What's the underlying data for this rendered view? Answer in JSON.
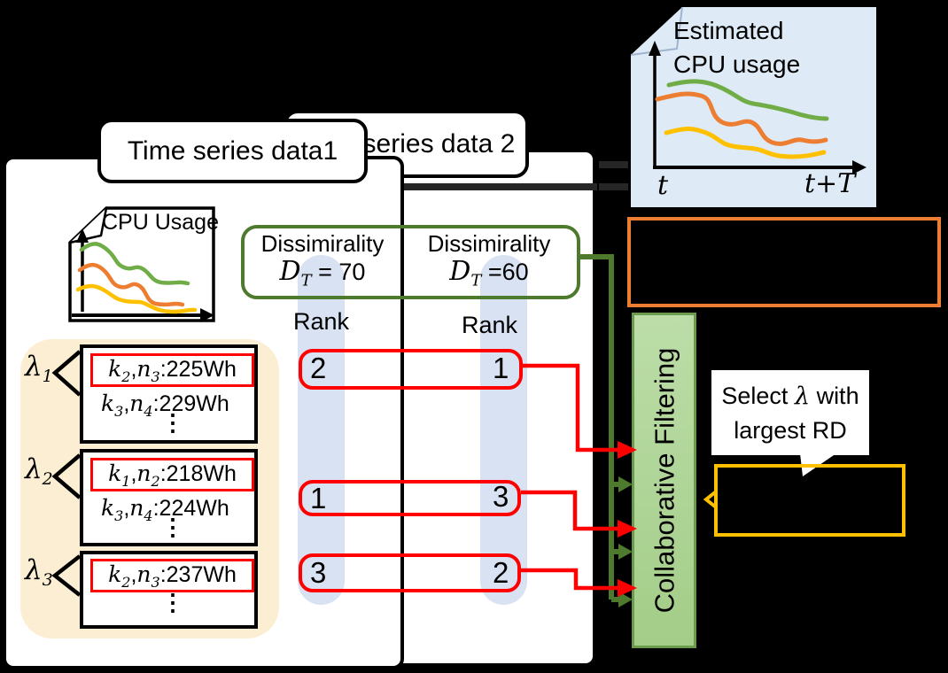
{
  "colors": {
    "green": "#70AD47",
    "orange": "#ED7D31",
    "yellow": "#FFC000",
    "red": "#FF0000",
    "dkgreen": "#4E7A2E",
    "cfFill": "#A3CD88",
    "cfFillLight": "#BCDDA8",
    "cfBorder": "#6B9C4E",
    "band": "#D9E2F3",
    "cream": "#FBEED3",
    "lightblue": "#DEEAF6",
    "connector": "#262626"
  },
  "cards": {
    "card1_title": "Time series data1",
    "card2_title": "Time series data 2"
  },
  "cpu_chart": {
    "label": "CPU Usage"
  },
  "estimated_chart": {
    "title_line1": "Estimated",
    "title_line2": "CPU usage",
    "x_start": "t",
    "x_end": "t+T"
  },
  "dissimilarity": {
    "col1": {
      "label": "Dissimirality",
      "var": "D",
      "sub": "T",
      "value": "= 70"
    },
    "col2": {
      "label": "Dissimirality",
      "var": "D",
      "sub": "T",
      "value": "=60"
    }
  },
  "rank": {
    "label1": "Rank",
    "label2": "Rank",
    "rows": [
      {
        "left": "2",
        "right": "1"
      },
      {
        "left": "1",
        "right": "3"
      },
      {
        "left": "3",
        "right": "2"
      }
    ]
  },
  "lambdas": [
    {
      "symbol": "λ",
      "sub": "1",
      "rows": [
        {
          "a": "k",
          "as": "2",
          "sep": ",",
          "b": "n",
          "bs": "3",
          "v": ":225Wh"
        },
        {
          "a": "k",
          "as": "3",
          "sep": ",",
          "b": "n",
          "bs": "4",
          "v": ":229Wh"
        }
      ],
      "dots": "⋮"
    },
    {
      "symbol": "λ",
      "sub": "2",
      "rows": [
        {
          "a": "k",
          "as": "1",
          "sep": ",",
          "b": "n",
          "bs": "2",
          "v": ":218Wh"
        },
        {
          "a": "k",
          "as": "3",
          "sep": ",",
          "b": "n",
          "bs": "4",
          "v": ":224Wh"
        }
      ],
      "dots": "⋮"
    },
    {
      "symbol": "λ",
      "sub": "3",
      "rows": [
        {
          "a": "k",
          "as": "2",
          "sep": ",",
          "b": "n",
          "bs": "3",
          "v": ":237Wh"
        }
      ],
      "dots": "⋮"
    }
  ],
  "cf": {
    "label": "Collaborative Filtering"
  },
  "callout": {
    "pre": "Select ",
    "lambda": "λ",
    "post": " with",
    "line2": "largest RD"
  }
}
